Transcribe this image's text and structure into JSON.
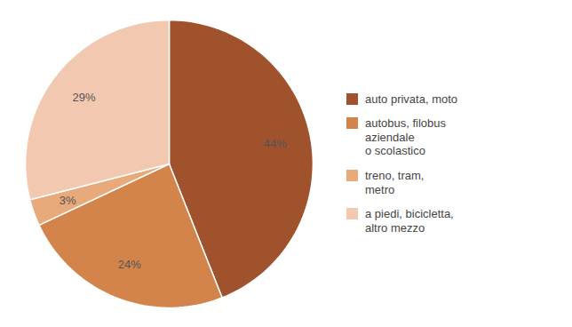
{
  "chart_data": {
    "type": "pie",
    "categories": [
      "auto privata, moto",
      "autobus, filobus\naziendale\no scolastico",
      "treno, tram,\nmetro",
      "a piedi, bicicletta,\naltro mezzo"
    ],
    "values": [
      44,
      24,
      3,
      29
    ],
    "value_labels": [
      "44%",
      "24%",
      "3%",
      "29%"
    ],
    "colors": [
      "#A0522D",
      "#D2844A",
      "#E8AA7A",
      "#F2C9B0"
    ],
    "data_labels": true,
    "legend": "right"
  }
}
